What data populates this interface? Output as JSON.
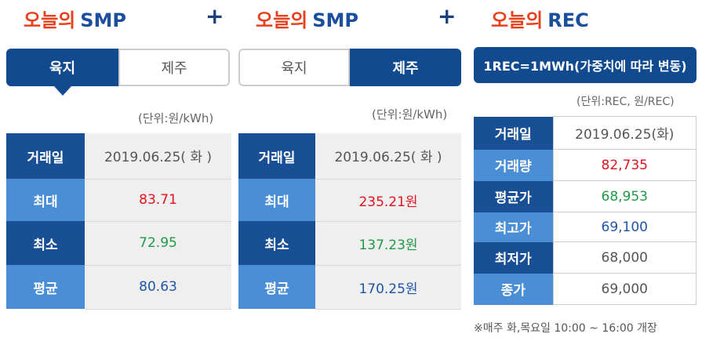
{
  "panel1": {
    "title_kr": "오늘의",
    "title_en": "SMP",
    "tabs": [
      "육지",
      "제주"
    ],
    "unit": "(단위:원/kWh)",
    "rows": [
      {
        "label": "거래일",
        "value": "2019.06.25( 화 )"
      },
      {
        "label": "최대",
        "value": "83.71"
      },
      {
        "label": "최소",
        "value": "72.95"
      },
      {
        "label": "평균",
        "value": "80.63"
      }
    ]
  },
  "panel2": {
    "title_kr": "오늘의",
    "title_en": "SMP",
    "tabs": [
      "육지",
      "제주"
    ],
    "unit": "(단위:원/kWh)",
    "rows": [
      {
        "label": "거래일",
        "value": "2019.06.25( 화 )"
      },
      {
        "label": "최대",
        "value": "235.21원"
      },
      {
        "label": "최소",
        "value": "137.23원"
      },
      {
        "label": "평균",
        "value": "170.25원"
      }
    ]
  },
  "panel3": {
    "title_kr": "오늘의",
    "title_en": "REC",
    "banner": "1REC=1MWh(가중치에 따라 변동)",
    "unit": "(단위:REC, 원/REC)",
    "rows": [
      {
        "label": "거래일",
        "value": "2019.06.25(화)"
      },
      {
        "label": "거래량",
        "value": "82,735"
      },
      {
        "label": "평균가",
        "value": "68,953"
      },
      {
        "label": "최고가",
        "value": "69,100"
      },
      {
        "label": "최저가",
        "value": "68,000"
      },
      {
        "label": "종가",
        "value": "69,000"
      }
    ],
    "note": "※매주 화,목요일 10:00 ~ 16:00 개장"
  },
  "plus_sign": "+",
  "colors": {
    "accent_red": "#e8401c",
    "brand_blue": "#114a8f",
    "max": "#e0141e",
    "min": "#1f9a45",
    "avg": "#1f55a8"
  }
}
